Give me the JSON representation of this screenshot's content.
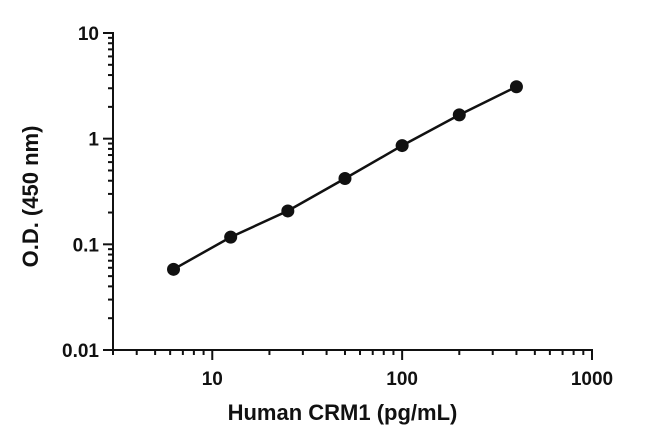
{
  "chart_data": {
    "type": "scatter",
    "xlabel": "Human CRM1 (pg/mL)",
    "ylabel": "O.D. (450 nm)",
    "x_scale": "log",
    "y_scale": "log",
    "xlim": [
      3,
      1000
    ],
    "ylim": [
      0.01,
      10
    ],
    "x_ticks": [
      10,
      100,
      1000
    ],
    "x_tick_labels": [
      "10",
      "100",
      "1000"
    ],
    "y_ticks": [
      0.01,
      0.1,
      1,
      10
    ],
    "y_tick_labels": [
      "0.01",
      "0.1",
      "1",
      "10"
    ],
    "grid": false,
    "legend": "none",
    "series": [
      {
        "x": [
          6.25,
          12.5,
          25,
          50,
          100,
          200,
          400
        ],
        "y": [
          0.058,
          0.117,
          0.207,
          0.42,
          0.86,
          1.68,
          3.1
        ],
        "show_line": true
      }
    ],
    "colors": {
      "marker": "#111111",
      "line": "#111111"
    }
  }
}
